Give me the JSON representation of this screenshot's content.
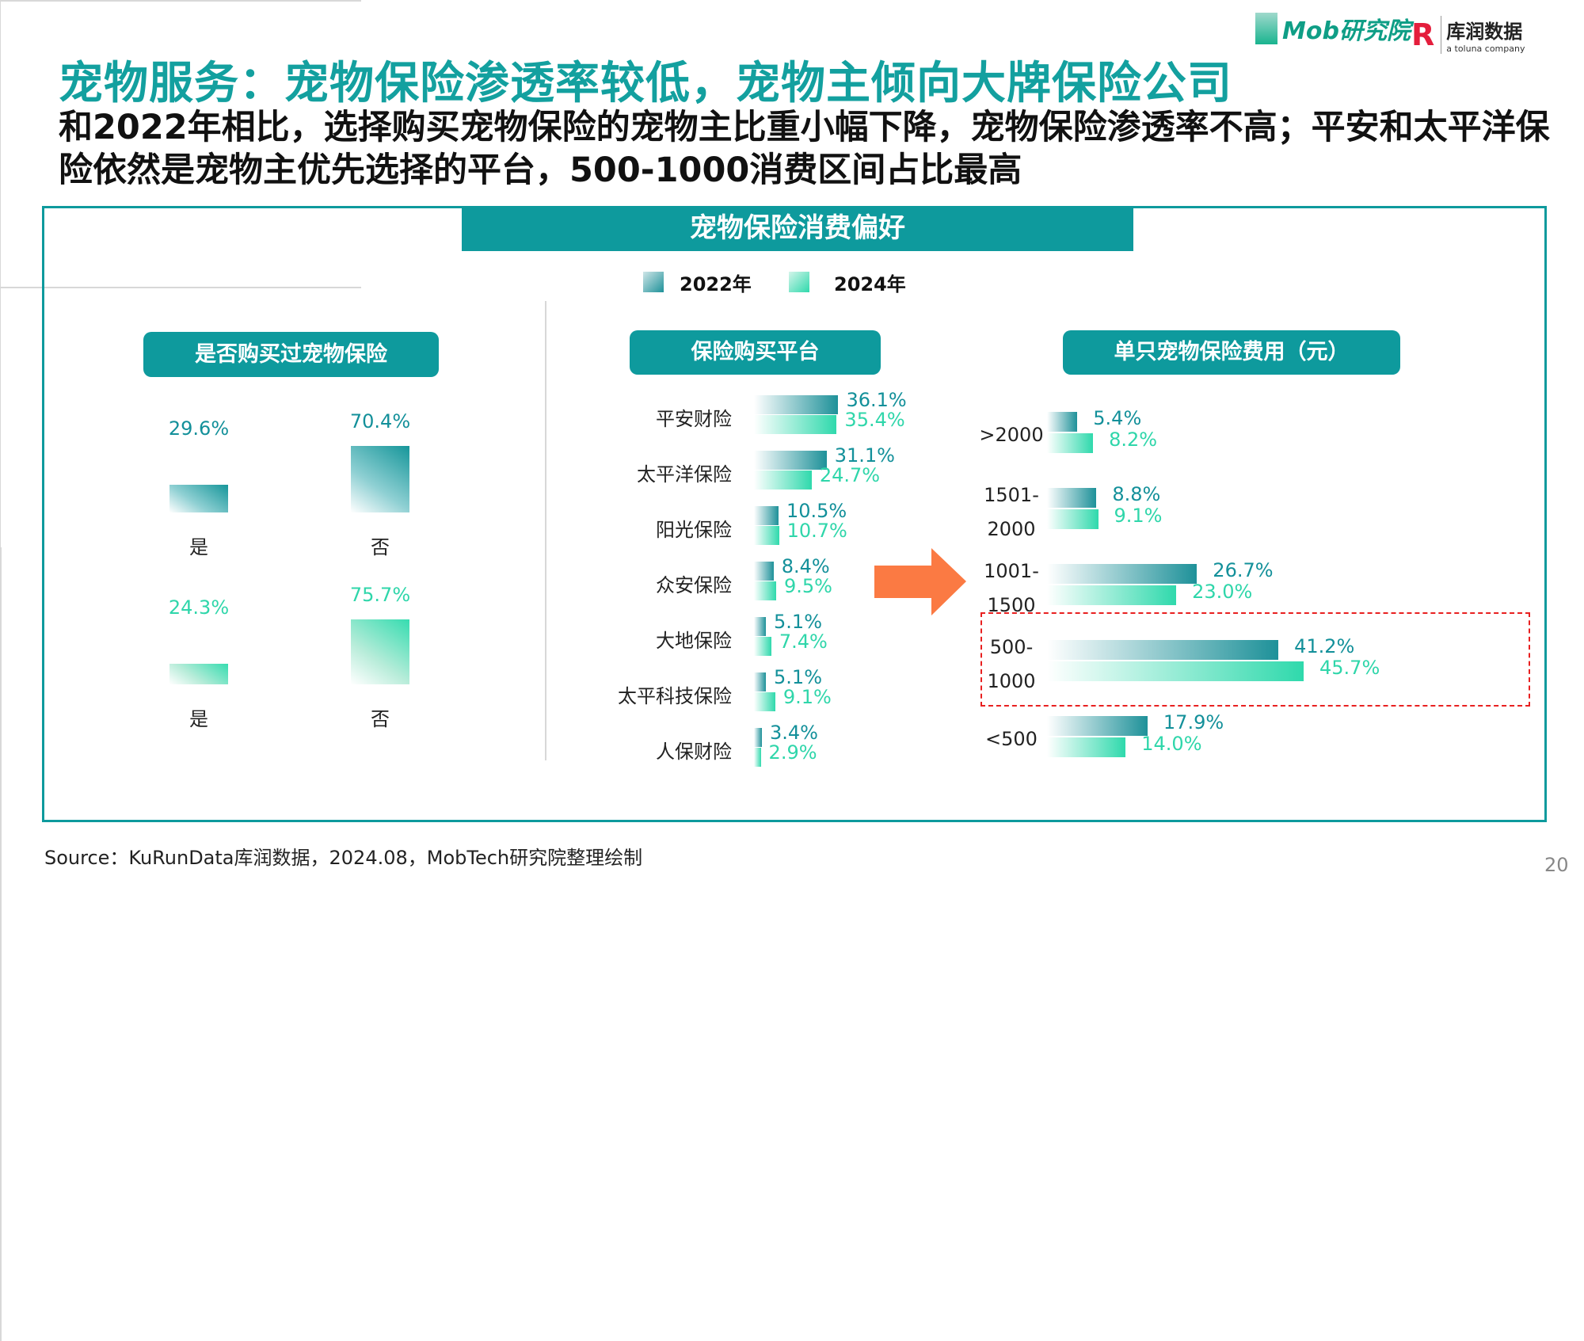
{
  "header": {
    "title": "宠物服务：宠物保险渗透率较低，宠物主倾向大牌保险公司",
    "subtitle": "和2022年相比，选择购买宠物保险的宠物主比重小幅下降，宠物保险渗透率不高；平安和太平洋保险依然是宠物主优先选择的平台，500-1000消费区间占比最高",
    "logos": [
      "Mob研究院",
      "库润数据",
      "a toluna company"
    ]
  },
  "banner": "宠物保险消费偏好",
  "legend": [
    {
      "label": "2022年",
      "color": "#1e9199"
    },
    {
      "label": "2024年",
      "color": "#2fd9ac"
    }
  ],
  "panels": {
    "left": "是否购买过宠物保险",
    "middle": "保险购买平台",
    "right": "单只宠物保险费用（元）"
  },
  "colors": {
    "accent": "#0e9a9d",
    "y2022": "#1e9199",
    "y2024": "#2fd9ac",
    "arrow": "#fb7a43",
    "highlight": "#e82020"
  },
  "chart_data": [
    {
      "type": "bar",
      "title": "是否购买过宠物保险",
      "series_year": "2022年",
      "categories": [
        "是",
        "否"
      ],
      "values": [
        29.6,
        70.4
      ],
      "labels": [
        "29.6%",
        "70.4%"
      ]
    },
    {
      "type": "bar",
      "title": "是否购买过宠物保险",
      "series_year": "2024年",
      "categories": [
        "是",
        "否"
      ],
      "values": [
        24.3,
        75.7
      ],
      "labels": [
        "24.3%",
        "75.7%"
      ]
    },
    {
      "type": "bar",
      "orientation": "horizontal",
      "title": "保险购买平台",
      "categories": [
        "平安财险",
        "太平洋保险",
        "阳光保险",
        "众安保险",
        "大地保险",
        "太平科技保险",
        "人保财险"
      ],
      "series": [
        {
          "name": "2022年",
          "values": [
            36.1,
            31.1,
            10.5,
            8.4,
            5.1,
            5.1,
            3.4
          ],
          "labels": [
            "36.1%",
            "31.1%",
            "10.5%",
            "8.4%",
            "5.1%",
            "5.1%",
            "3.4%"
          ]
        },
        {
          "name": "2024年",
          "values": [
            35.4,
            24.7,
            10.7,
            9.5,
            7.4,
            9.1,
            2.9
          ],
          "labels": [
            "35.4%",
            "24.7%",
            "10.7%",
            "9.5%",
            "7.4%",
            "9.1%",
            "2.9%"
          ]
        }
      ]
    },
    {
      "type": "bar",
      "orientation": "horizontal",
      "title": "单只宠物保险费用（元）",
      "categories": [
        [
          ">2000"
        ],
        [
          "1501-",
          "2000"
        ],
        [
          "1001-",
          "1500"
        ],
        [
          "500-",
          "1000"
        ],
        [
          "<500"
        ]
      ],
      "highlight": "500-1000",
      "series": [
        {
          "name": "2022年",
          "values": [
            5.4,
            8.8,
            26.7,
            41.2,
            17.9
          ],
          "labels": [
            "5.4%",
            "8.8%",
            "26.7%",
            "41.2%",
            "17.9%"
          ]
        },
        {
          "name": "2024年",
          "values": [
            8.2,
            9.1,
            23.0,
            45.7,
            14.0
          ],
          "labels": [
            "8.2%",
            "9.1%",
            "23.0%",
            "45.7%",
            "14.0%"
          ]
        }
      ]
    }
  ],
  "footer": {
    "source": "Source：KuRunData库润数据，2024.08，MobTech研究院整理绘制",
    "page": "20"
  }
}
